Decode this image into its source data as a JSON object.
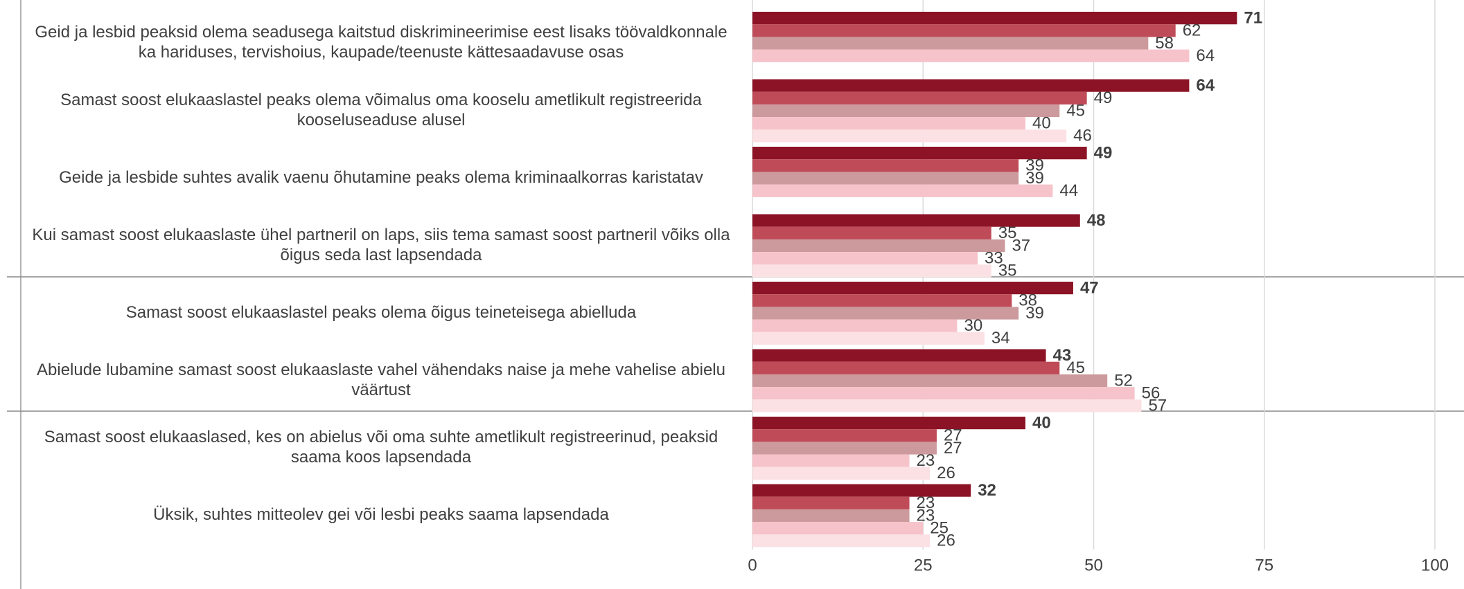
{
  "chart_data": {
    "type": "hbar",
    "categories": [
      "Geid ja lesbid peaksid olema seadusega kaitstud diskrimineerimise eest lisaks töövaldkonnale ka hariduses, tervishoius, kaupade/teenuste kättesaadavuse osas",
      "Samast soost elukaaslastel peaks olema võimalus oma kooselu ametlikult registreerida kooseluseaduse alusel",
      "Geide ja lesbide suhtes avalik vaenu õhutamine peaks olema kriminaalkorras karistatav",
      "Kui samast soost elukaaslaste ühel partneril on laps, siis tema samast soost partneril võiks olla õigus seda last lapsendada",
      "Samast soost elukaaslastel peaks olema õigus teineteisega abielluda",
      "Abielude lubamine samast soost elukaaslaste vahel vähendaks naise ja mehe vahelise abielu väärtust",
      "Samast soost elukaaslased, kes on abielus või oma suhte ametlikult registreerinud, peaksid saama koos lapsendada",
      "Üksik, suhtes mitteolev gei või lesbi peaks saama lapsendada"
    ],
    "series": [
      {
        "color": "#8c1325",
        "values": [
          71,
          64,
          49,
          48,
          47,
          43,
          40,
          32
        ]
      },
      {
        "color": "#be4b57",
        "values": [
          62,
          49,
          39,
          35,
          38,
          45,
          27,
          23
        ]
      },
      {
        "color": "#cc9a9d",
        "values": [
          58,
          45,
          39,
          37,
          39,
          52,
          27,
          23
        ]
      },
      {
        "color": "#f6c3ca",
        "values": [
          64,
          40,
          44,
          33,
          30,
          56,
          23,
          25
        ]
      },
      {
        "color": "#fbe0e4",
        "values": [
          null,
          46,
          null,
          35,
          34,
          57,
          26,
          26
        ]
      }
    ],
    "xlim": [
      0,
      100
    ],
    "xticks": [
      0,
      25,
      50,
      75,
      100
    ],
    "grid": true
  }
}
